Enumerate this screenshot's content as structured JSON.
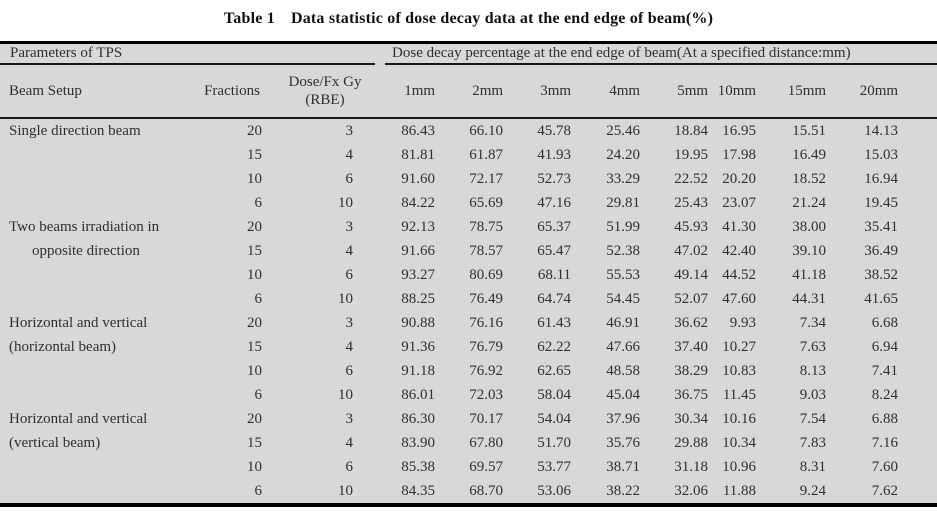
{
  "page": {
    "table_label": "Table 1",
    "caption": "Data statistic of dose decay data at the end edge of beam(%)"
  },
  "colors": {
    "table_background": "#d8d8d8",
    "rule_color": "#000000",
    "text_color": "#2f2f2f"
  },
  "chart_data": {
    "type": "table",
    "section_headers": {
      "left": "Parameters of TPS",
      "right": "Dose decay percentage at the end edge of beam(At a specified distance:mm)"
    },
    "columns": {
      "beam_setup": "Beam Setup",
      "fractions": "Fractions",
      "dose_fx_lines": [
        "Dose/Fx Gy",
        "(RBE)"
      ],
      "distances": [
        "1mm",
        "2mm",
        "3mm",
        "4mm",
        "5mm",
        "10mm",
        "15mm",
        "20mm"
      ]
    },
    "groups": [
      {
        "label_lines": [
          "Single direction beam"
        ],
        "indent_line2": false,
        "rows": [
          [
            "20",
            "3",
            "86.43",
            "66.10",
            "45.78",
            "25.46",
            "18.84",
            "16.95",
            "15.51",
            "14.13"
          ],
          [
            "15",
            "4",
            "81.81",
            "61.87",
            "41.93",
            "24.20",
            "19.95",
            "17.98",
            "16.49",
            "15.03"
          ],
          [
            "10",
            "6",
            "91.60",
            "72.17",
            "52.73",
            "33.29",
            "22.52",
            "20.20",
            "18.52",
            "16.94"
          ],
          [
            "6",
            "10",
            "84.22",
            "65.69",
            "47.16",
            "29.81",
            "25.43",
            "23.07",
            "21.24",
            "19.45"
          ]
        ]
      },
      {
        "label_lines": [
          "Two beams irradiation in",
          "opposite direction"
        ],
        "indent_line2": true,
        "rows": [
          [
            "20",
            "3",
            "92.13",
            "78.75",
            "65.37",
            "51.99",
            "45.93",
            "41.30",
            "38.00",
            "35.41"
          ],
          [
            "15",
            "4",
            "91.66",
            "78.57",
            "65.47",
            "52.38",
            "47.02",
            "42.40",
            "39.10",
            "36.49"
          ],
          [
            "10",
            "6",
            "93.27",
            "80.69",
            "68.11",
            "55.53",
            "49.14",
            "44.52",
            "41.18",
            "38.52"
          ],
          [
            "6",
            "10",
            "88.25",
            "76.49",
            "64.74",
            "54.45",
            "52.07",
            "47.60",
            "44.31",
            "41.65"
          ]
        ]
      },
      {
        "label_lines": [
          "Horizontal and vertical",
          "(horizontal beam)"
        ],
        "indent_line2": false,
        "rows": [
          [
            "20",
            "3",
            "90.88",
            "76.16",
            "61.43",
            "46.91",
            "36.62",
            "9.93",
            "7.34",
            "6.68"
          ],
          [
            "15",
            "4",
            "91.36",
            "76.79",
            "62.22",
            "47.66",
            "37.40",
            "10.27",
            "7.63",
            "6.94"
          ],
          [
            "10",
            "6",
            "91.18",
            "76.92",
            "62.65",
            "48.58",
            "38.29",
            "10.83",
            "8.13",
            "7.41"
          ],
          [
            "6",
            "10",
            "86.01",
            "72.03",
            "58.04",
            "45.04",
            "36.75",
            "11.45",
            "9.03",
            "8.24"
          ]
        ]
      },
      {
        "label_lines": [
          "Horizontal and vertical",
          "(vertical beam)"
        ],
        "indent_line2": false,
        "rows": [
          [
            "20",
            "3",
            "86.30",
            "70.17",
            "54.04",
            "37.96",
            "30.34",
            "10.16",
            "7.54",
            "6.88"
          ],
          [
            "15",
            "4",
            "83.90",
            "67.80",
            "51.70",
            "35.76",
            "29.88",
            "10.34",
            "7.83",
            "7.16"
          ],
          [
            "10",
            "6",
            "85.38",
            "69.57",
            "53.77",
            "38.71",
            "31.18",
            "10.96",
            "8.31",
            "7.60"
          ],
          [
            "6",
            "10",
            "84.35",
            "68.70",
            "53.06",
            "38.22",
            "32.06",
            "11.88",
            "9.24",
            "7.62"
          ]
        ]
      }
    ]
  }
}
